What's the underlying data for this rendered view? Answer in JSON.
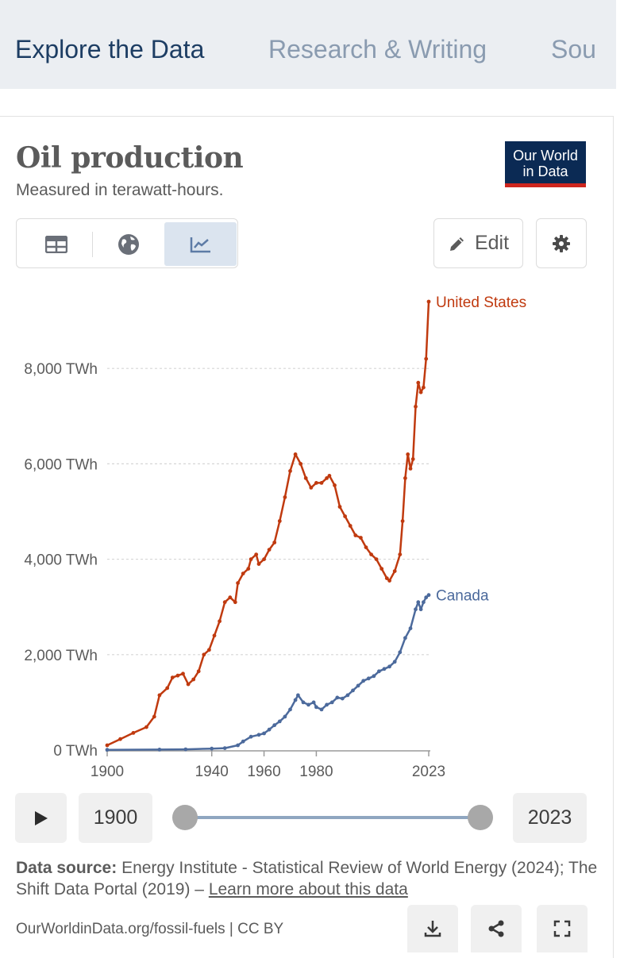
{
  "nav": {
    "tabs": [
      {
        "label": "Explore the Data"
      },
      {
        "label": "Research & Writing"
      },
      {
        "label": "Sou"
      }
    ]
  },
  "header": {
    "title": "Oil production",
    "subtitle": "Measured in terawatt-hours.",
    "logo_line1": "Our World",
    "logo_line2": "in Data"
  },
  "controls": {
    "view_tabs": [
      {
        "icon": "table-icon",
        "label": "Table"
      },
      {
        "icon": "globe-icon",
        "label": "Map"
      },
      {
        "icon": "line-chart-icon",
        "label": "Chart",
        "active": true
      }
    ],
    "edit_label": "Edit",
    "settings_icon": "gear-icon"
  },
  "chart_data": {
    "type": "line",
    "title": "Oil production",
    "subtitle": "Measured in terawatt-hours.",
    "ylabel": "TWh",
    "ylim": [
      0,
      9600
    ],
    "xlim": [
      1900,
      2023
    ],
    "y_ticks": [
      0,
      2000,
      4000,
      6000,
      8000
    ],
    "y_tick_labels": [
      "0 TWh",
      "2,000 TWh",
      "4,000 TWh",
      "6,000 TWh",
      "8,000 TWh"
    ],
    "x_ticks": [
      1900,
      1940,
      1960,
      1980,
      2023
    ],
    "x_tick_labels": [
      "1900",
      "1940",
      "1960",
      "1980",
      "2023"
    ],
    "grid": true,
    "series": [
      {
        "name": "United States",
        "color": "#c03a0f",
        "points": [
          [
            1900,
            100
          ],
          [
            1905,
            230
          ],
          [
            1910,
            360
          ],
          [
            1915,
            480
          ],
          [
            1918,
            700
          ],
          [
            1920,
            1150
          ],
          [
            1923,
            1300
          ],
          [
            1925,
            1520
          ],
          [
            1927,
            1560
          ],
          [
            1929,
            1600
          ],
          [
            1931,
            1380
          ],
          [
            1933,
            1480
          ],
          [
            1935,
            1650
          ],
          [
            1937,
            2000
          ],
          [
            1939,
            2100
          ],
          [
            1941,
            2400
          ],
          [
            1943,
            2700
          ],
          [
            1945,
            3100
          ],
          [
            1947,
            3200
          ],
          [
            1949,
            3100
          ],
          [
            1950,
            3500
          ],
          [
            1952,
            3700
          ],
          [
            1954,
            3800
          ],
          [
            1955,
            4000
          ],
          [
            1957,
            4100
          ],
          [
            1958,
            3900
          ],
          [
            1960,
            4000
          ],
          [
            1962,
            4200
          ],
          [
            1964,
            4350
          ],
          [
            1966,
            4800
          ],
          [
            1968,
            5300
          ],
          [
            1970,
            5850
          ],
          [
            1972,
            6200
          ],
          [
            1974,
            6000
          ],
          [
            1976,
            5700
          ],
          [
            1978,
            5500
          ],
          [
            1980,
            5600
          ],
          [
            1982,
            5600
          ],
          [
            1984,
            5700
          ],
          [
            1985,
            5750
          ],
          [
            1987,
            5550
          ],
          [
            1989,
            5100
          ],
          [
            1991,
            4900
          ],
          [
            1993,
            4700
          ],
          [
            1995,
            4500
          ],
          [
            1997,
            4450
          ],
          [
            1999,
            4250
          ],
          [
            2001,
            4100
          ],
          [
            2003,
            4000
          ],
          [
            2005,
            3800
          ],
          [
            2007,
            3600
          ],
          [
            2008,
            3550
          ],
          [
            2010,
            3750
          ],
          [
            2012,
            4100
          ],
          [
            2013,
            4800
          ],
          [
            2014,
            5700
          ],
          [
            2015,
            6200
          ],
          [
            2016,
            5900
          ],
          [
            2017,
            6100
          ],
          [
            2018,
            7200
          ],
          [
            2019,
            7700
          ],
          [
            2020,
            7500
          ],
          [
            2021,
            7600
          ],
          [
            2022,
            8200
          ],
          [
            2023,
            9400
          ]
        ]
      },
      {
        "name": "Canada",
        "color": "#4c6a9c",
        "points": [
          [
            1900,
            5
          ],
          [
            1920,
            10
          ],
          [
            1930,
            15
          ],
          [
            1940,
            30
          ],
          [
            1945,
            40
          ],
          [
            1950,
            100
          ],
          [
            1952,
            180
          ],
          [
            1955,
            280
          ],
          [
            1958,
            320
          ],
          [
            1960,
            350
          ],
          [
            1962,
            430
          ],
          [
            1964,
            520
          ],
          [
            1966,
            600
          ],
          [
            1968,
            700
          ],
          [
            1970,
            850
          ],
          [
            1972,
            1050
          ],
          [
            1973,
            1150
          ],
          [
            1975,
            1000
          ],
          [
            1977,
            950
          ],
          [
            1979,
            1000
          ],
          [
            1980,
            900
          ],
          [
            1982,
            850
          ],
          [
            1984,
            950
          ],
          [
            1986,
            1000
          ],
          [
            1988,
            1100
          ],
          [
            1990,
            1080
          ],
          [
            1992,
            1150
          ],
          [
            1994,
            1250
          ],
          [
            1996,
            1350
          ],
          [
            1998,
            1450
          ],
          [
            2000,
            1500
          ],
          [
            2002,
            1550
          ],
          [
            2004,
            1650
          ],
          [
            2006,
            1700
          ],
          [
            2008,
            1750
          ],
          [
            2010,
            1850
          ],
          [
            2012,
            2050
          ],
          [
            2014,
            2350
          ],
          [
            2016,
            2550
          ],
          [
            2018,
            2950
          ],
          [
            2019,
            3100
          ],
          [
            2020,
            2950
          ],
          [
            2021,
            3100
          ],
          [
            2022,
            3200
          ],
          [
            2023,
            3250
          ]
        ]
      }
    ]
  },
  "timeline": {
    "start_year": "1900",
    "end_year": "2023"
  },
  "footer": {
    "source_label": "Data source:",
    "source_text": "Energy Institute - Statistical Review of World Energy (2024); The Shift Data Portal (2019) –",
    "learn_more": "Learn more about this data",
    "url": "OurWorldinData.org/fossil-fuels | CC BY"
  }
}
